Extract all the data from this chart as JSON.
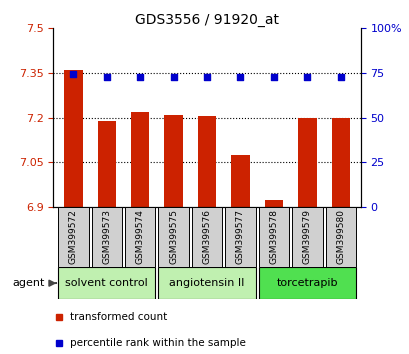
{
  "title": "GDS3556 / 91920_at",
  "samples": [
    "GSM399572",
    "GSM399573",
    "GSM399574",
    "GSM399575",
    "GSM399576",
    "GSM399577",
    "GSM399578",
    "GSM399579",
    "GSM399580"
  ],
  "red_values": [
    7.36,
    7.19,
    7.22,
    7.21,
    7.205,
    7.075,
    6.925,
    7.2,
    7.2
  ],
  "blue_values": [
    74.5,
    73.0,
    73.0,
    73.0,
    73.0,
    72.5,
    72.5,
    73.0,
    73.0
  ],
  "ylim_left": [
    6.9,
    7.5
  ],
  "ylim_right": [
    0,
    100
  ],
  "yticks_left": [
    6.9,
    7.05,
    7.2,
    7.35,
    7.5
  ],
  "ytick_labels_left": [
    "6.9",
    "7.05",
    "7.2",
    "7.35",
    "7.5"
  ],
  "yticks_right": [
    0,
    25,
    50,
    75,
    100
  ],
  "ytick_labels_right": [
    "0",
    "25",
    "50",
    "75",
    "100%"
  ],
  "hlines": [
    7.05,
    7.2,
    7.35
  ],
  "groups": [
    {
      "label": "solvent control",
      "start": 0,
      "end": 3
    },
    {
      "label": "angiotensin II",
      "start": 3,
      "end": 6
    },
    {
      "label": "torcetrapib",
      "start": 6,
      "end": 9
    }
  ],
  "group_colors": [
    "#c0f0b0",
    "#c0f0b0",
    "#50e050"
  ],
  "bar_color": "#cc2200",
  "dot_color": "#0000cc",
  "bar_width": 0.55,
  "bar_bottom": 6.9,
  "legend_red_label": "transformed count",
  "legend_blue_label": "percentile rank within the sample",
  "agent_label": "agent",
  "title_fontsize": 10,
  "tick_fontsize": 8,
  "group_fontsize": 8,
  "sample_fontsize": 6.5,
  "legend_fontsize": 7.5,
  "left_tick_color": "#cc2200",
  "right_tick_color": "#0000cc",
  "sample_box_color": "#d0d0d0",
  "plot_bg": "#ffffff"
}
